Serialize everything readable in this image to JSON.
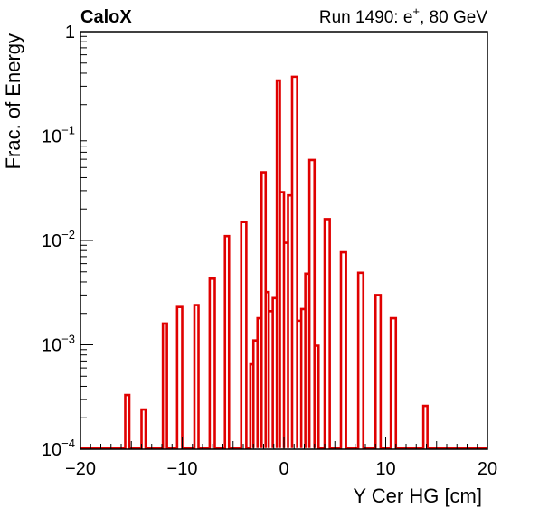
{
  "chart_data": {
    "type": "bar",
    "style": "step-histogram",
    "title_left": "CaloX",
    "title_right_base": "Run 1490: e",
    "title_right_sup": "+",
    "title_right_tail": ", 80 GeV",
    "xlabel": "Y Cer HG [cm]",
    "ylabel": "Frac. of Energy",
    "xlim": [
      -20,
      20
    ],
    "ylim": [
      0.0001,
      1
    ],
    "yscale": "log",
    "grid": false,
    "line_color": "#e00000",
    "x_ticks": [
      {
        "value": -20,
        "label": "−20"
      },
      {
        "value": -10,
        "label": "−10"
      },
      {
        "value": 0,
        "label": "0"
      },
      {
        "value": 10,
        "label": "10"
      },
      {
        "value": 20,
        "label": "20"
      }
    ],
    "y_ticks": [
      {
        "value": 1,
        "base": "1",
        "exp": ""
      },
      {
        "value": 0.1,
        "base": "10",
        "exp": "−1"
      },
      {
        "value": 0.01,
        "base": "10",
        "exp": "−2"
      },
      {
        "value": 0.001,
        "base": "10",
        "exp": "−3"
      },
      {
        "value": 0.0001,
        "base": "10",
        "exp": "−4"
      }
    ],
    "series": [
      {
        "bins": [
          {
            "x0": -15.6,
            "x1": -15.2,
            "y": 0.00033
          },
          {
            "x0": -14.0,
            "x1": -13.6,
            "y": 0.00024
          },
          {
            "x0": -11.9,
            "x1": -11.5,
            "y": 0.0016
          },
          {
            "x0": -10.5,
            "x1": -10.0,
            "y": 0.0023
          },
          {
            "x0": -8.8,
            "x1": -8.4,
            "y": 0.0024
          },
          {
            "x0": -7.3,
            "x1": -6.8,
            "y": 0.0043
          },
          {
            "x0": -5.8,
            "x1": -5.4,
            "y": 0.011
          },
          {
            "x0": -4.2,
            "x1": -3.7,
            "y": 0.015
          },
          {
            "x0": -3.3,
            "x1": -3.0,
            "y": 0.00065
          },
          {
            "x0": -3.0,
            "x1": -2.6,
            "y": 0.0011
          },
          {
            "x0": -2.6,
            "x1": -2.2,
            "y": 0.0018
          },
          {
            "x0": -2.2,
            "x1": -1.8,
            "y": 0.045
          },
          {
            "x0": -1.8,
            "x1": -1.5,
            "y": 0.0032
          },
          {
            "x0": -1.5,
            "x1": -1.1,
            "y": 0.0021
          },
          {
            "x0": -1.1,
            "x1": -0.7,
            "y": 0.0028
          },
          {
            "x0": -0.7,
            "x1": -0.4,
            "y": 0.34
          },
          {
            "x0": -0.4,
            "x1": 0.0,
            "y": 0.029
          },
          {
            "x0": 0.0,
            "x1": 0.4,
            "y": 0.0095
          },
          {
            "x0": 0.4,
            "x1": 0.8,
            "y": 0.027
          },
          {
            "x0": 0.8,
            "x1": 1.3,
            "y": 0.37
          },
          {
            "x0": 1.3,
            "x1": 1.7,
            "y": 0.0017
          },
          {
            "x0": 1.7,
            "x1": 2.1,
            "y": 0.0022
          },
          {
            "x0": 2.1,
            "x1": 2.5,
            "y": 0.0048
          },
          {
            "x0": 2.5,
            "x1": 3.0,
            "y": 0.059
          },
          {
            "x0": 3.0,
            "x1": 3.4,
            "y": 0.00098
          },
          {
            "x0": 4.0,
            "x1": 4.5,
            "y": 0.016
          },
          {
            "x0": 5.6,
            "x1": 6.1,
            "y": 0.0077
          },
          {
            "x0": 7.3,
            "x1": 7.8,
            "y": 0.0049
          },
          {
            "x0": 9.0,
            "x1": 9.5,
            "y": 0.003
          },
          {
            "x0": 10.5,
            "x1": 11.0,
            "y": 0.0018
          },
          {
            "x0": 13.7,
            "x1": 14.1,
            "y": 0.00026
          }
        ]
      }
    ]
  }
}
